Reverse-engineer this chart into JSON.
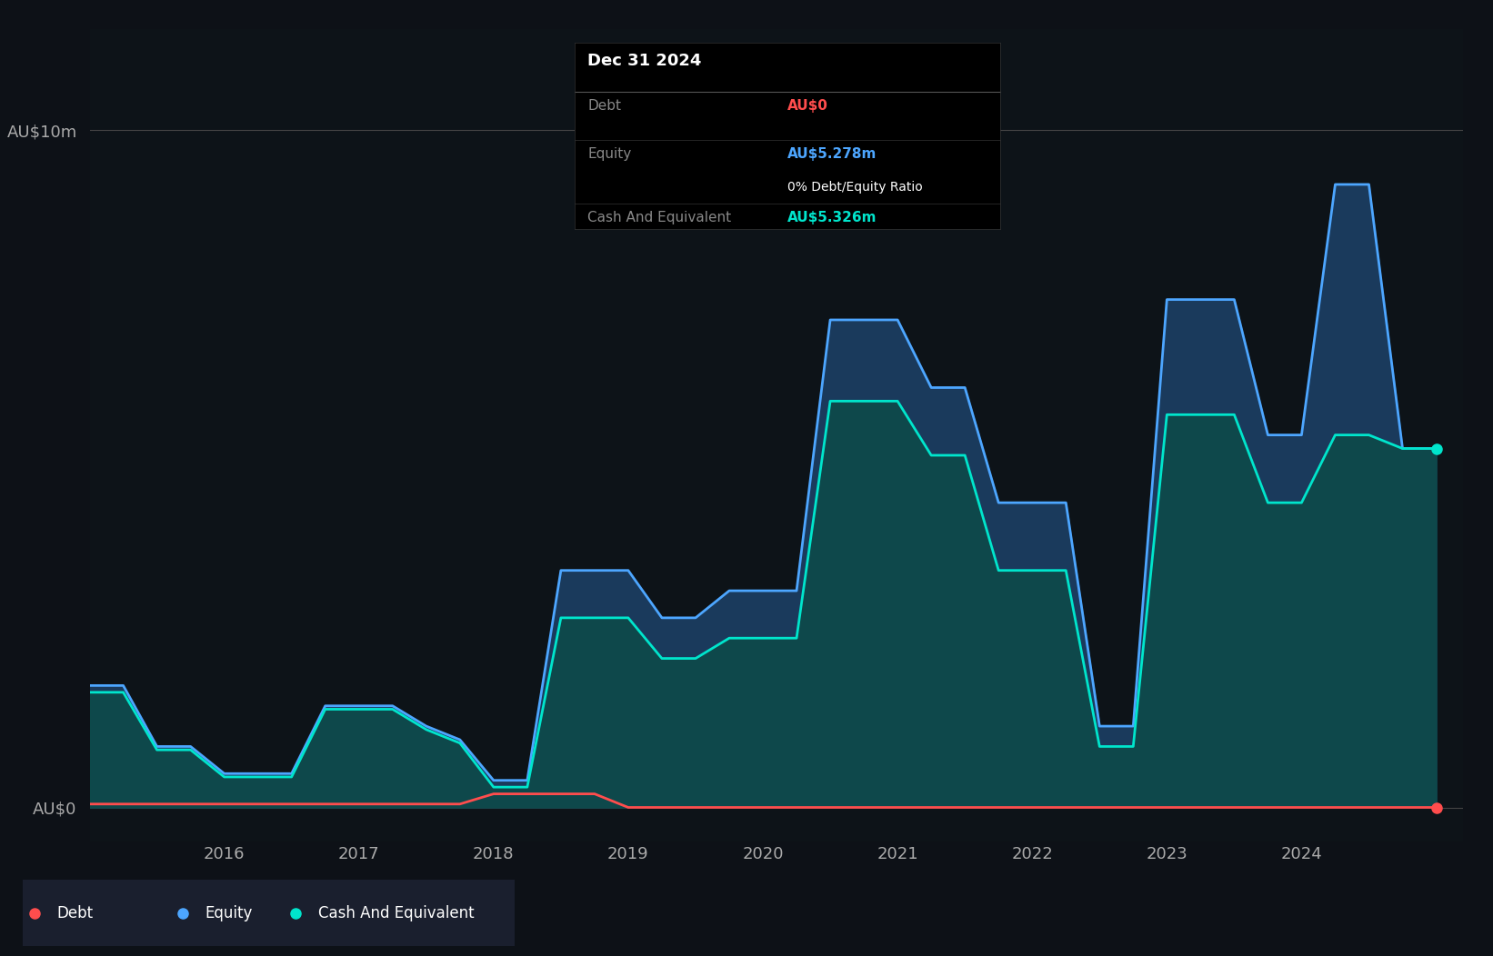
{
  "background_color": "#0d1117",
  "plot_bg_color": "#0d1318",
  "ylabel_top": "AU$10m",
  "ylabel_bottom": "AU$0",
  "y_max": 10,
  "x_tick_positions": [
    2016,
    2017,
    2018,
    2019,
    2020,
    2021,
    2022,
    2023,
    2024
  ],
  "debt_color": "#ff4d4d",
  "equity_color": "#4da6ff",
  "cash_color": "#00e5cc",
  "equity_fill_color": "#1a3a5c",
  "cash_fill_color": "#0d4a4a",
  "tooltip_bg": "#000000",
  "tooltip_title": "Dec 31 2024",
  "tooltip_debt_label": "Debt",
  "tooltip_debt_value": "AU$0",
  "tooltip_equity_label": "Equity",
  "tooltip_equity_value": "AU$5.278m",
  "tooltip_ratio": "0% Debt/Equity Ratio",
  "tooltip_cash_label": "Cash And Equivalent",
  "tooltip_cash_value": "AU$5.326m",
  "legend_items": [
    "Debt",
    "Equity",
    "Cash And Equivalent"
  ],
  "legend_colors": [
    "#ff4d4d",
    "#4da6ff",
    "#00e5cc"
  ],
  "time_points": [
    2015.0,
    2015.25,
    2015.5,
    2015.75,
    2016.0,
    2016.25,
    2016.5,
    2016.75,
    2017.0,
    2017.25,
    2017.5,
    2017.75,
    2018.0,
    2018.25,
    2018.5,
    2018.75,
    2019.0,
    2019.25,
    2019.5,
    2019.75,
    2020.0,
    2020.25,
    2020.5,
    2020.75,
    2021.0,
    2021.25,
    2021.5,
    2021.75,
    2022.0,
    2022.25,
    2022.5,
    2022.75,
    2023.0,
    2023.25,
    2023.5,
    2023.75,
    2024.0,
    2024.25,
    2024.5,
    2024.75,
    2025.0
  ],
  "equity_values": [
    1.8,
    1.8,
    0.9,
    0.9,
    0.5,
    0.5,
    0.5,
    1.5,
    1.5,
    1.5,
    1.2,
    1.0,
    0.4,
    0.4,
    3.5,
    3.5,
    3.5,
    2.8,
    2.8,
    3.2,
    3.2,
    3.2,
    7.2,
    7.2,
    7.2,
    6.2,
    6.2,
    4.5,
    4.5,
    4.5,
    1.2,
    1.2,
    7.5,
    7.5,
    7.5,
    5.5,
    5.5,
    9.2,
    9.2,
    5.3,
    5.3
  ],
  "cash_values": [
    1.7,
    1.7,
    0.85,
    0.85,
    0.45,
    0.45,
    0.45,
    1.45,
    1.45,
    1.45,
    1.15,
    0.95,
    0.3,
    0.3,
    2.8,
    2.8,
    2.8,
    2.2,
    2.2,
    2.5,
    2.5,
    2.5,
    6.0,
    6.0,
    6.0,
    5.2,
    5.2,
    3.5,
    3.5,
    3.5,
    0.9,
    0.9,
    5.8,
    5.8,
    5.8,
    4.5,
    4.5,
    5.5,
    5.5,
    5.3,
    5.3
  ],
  "debt_values": [
    0.05,
    0.05,
    0.05,
    0.05,
    0.05,
    0.05,
    0.05,
    0.05,
    0.05,
    0.05,
    0.05,
    0.05,
    0.2,
    0.2,
    0.2,
    0.2,
    0.0,
    0.0,
    0.0,
    0.0,
    0.0,
    0.0,
    0.0,
    0.0,
    0.0,
    0.0,
    0.0,
    0.0,
    0.0,
    0.0,
    0.0,
    0.0,
    0.0,
    0.0,
    0.0,
    0.0,
    0.0,
    0.0,
    0.0,
    0.0,
    0.0
  ]
}
